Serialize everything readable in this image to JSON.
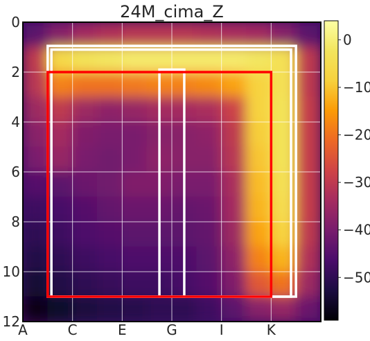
{
  "chart_data": {
    "type": "heatmap",
    "title": "24M_cima_Z",
    "xlabel": "",
    "ylabel": "",
    "x_tick_labels": [
      "A",
      "C",
      "E",
      "G",
      "I",
      "K"
    ],
    "x_tick_values": [
      0,
      2,
      4,
      6,
      8,
      10
    ],
    "y_tick_labels": [
      "0",
      "2",
      "4",
      "6",
      "8",
      "10",
      "12"
    ],
    "y_tick_values": [
      0,
      2,
      4,
      6,
      8,
      10,
      12
    ],
    "xlim": [
      0,
      12
    ],
    "ylim": [
      12,
      0
    ],
    "grid": true,
    "colormap": "inferno",
    "colorbar": {
      "range": [
        -59,
        4
      ],
      "tick_labels": [
        "0",
        "−10",
        "−20",
        "−30",
        "−40",
        "−50"
      ],
      "tick_values": [
        0,
        -10,
        -20,
        -30,
        -40,
        -50
      ]
    },
    "overlay_rectangles": [
      {
        "name": "outer-frame",
        "color": "#ffffff",
        "x0": 1.0,
        "y0": 0.95,
        "x1": 11.0,
        "y1": 11.0
      },
      {
        "name": "inner-frame",
        "color": "#ffffff",
        "x0": 1.15,
        "y0": 1.1,
        "x1": 10.8,
        "y1": 11.0
      },
      {
        "name": "center-strip",
        "color": "#ffffff",
        "x0": 5.5,
        "y0": 1.9,
        "x1": 6.5,
        "y1": 11.0
      },
      {
        "name": "red-path",
        "color": "#ff0000",
        "x0": 1.0,
        "y0": 2.0,
        "x1": 10.0,
        "y1": 11.0
      }
    ],
    "grid_cols": 12,
    "grid_rows": 12,
    "values": [
      [
        -44,
        -38,
        -34,
        -32,
        -31,
        -31,
        -31,
        -32,
        -33,
        -34,
        -38,
        -44
      ],
      [
        -30,
        -6,
        -3,
        -2,
        -1,
        -1,
        -1,
        -1,
        -1,
        -2,
        -4,
        -30
      ],
      [
        -31,
        -18,
        -20,
        -20,
        -19,
        -18,
        -18,
        -17,
        -14,
        -8,
        -4,
        -30
      ],
      [
        -35,
        -30,
        -35,
        -37,
        -36,
        -34,
        -34,
        -33,
        -28,
        -8,
        -3,
        -29
      ],
      [
        -38,
        -34,
        -39,
        -40,
        -40,
        -38,
        -38,
        -37,
        -30,
        -9,
        -3,
        -29
      ],
      [
        -40,
        -36,
        -40,
        -41,
        -40,
        -37,
        -38,
        -38,
        -31,
        -10,
        -3,
        -29
      ],
      [
        -45,
        -44,
        -42,
        -41,
        -39,
        -39,
        -40,
        -40,
        -33,
        -11,
        -4,
        -29
      ],
      [
        -48,
        -47,
        -45,
        -43,
        -42,
        -42,
        -43,
        -42,
        -34,
        -12,
        -5,
        -29
      ],
      [
        -50,
        -48,
        -46,
        -45,
        -44,
        -44,
        -44,
        -43,
        -35,
        -14,
        -8,
        -30
      ],
      [
        -52,
        -50,
        -48,
        -47,
        -46,
        -46,
        -46,
        -44,
        -37,
        -18,
        -12,
        -32
      ],
      [
        -54,
        -52,
        -50,
        -49,
        -48,
        -48,
        -47,
        -45,
        -39,
        -24,
        -20,
        -35
      ],
      [
        -57,
        -55,
        -53,
        -52,
        -51,
        -50,
        -50,
        -48,
        -44,
        -38,
        -36,
        -42
      ]
    ]
  }
}
